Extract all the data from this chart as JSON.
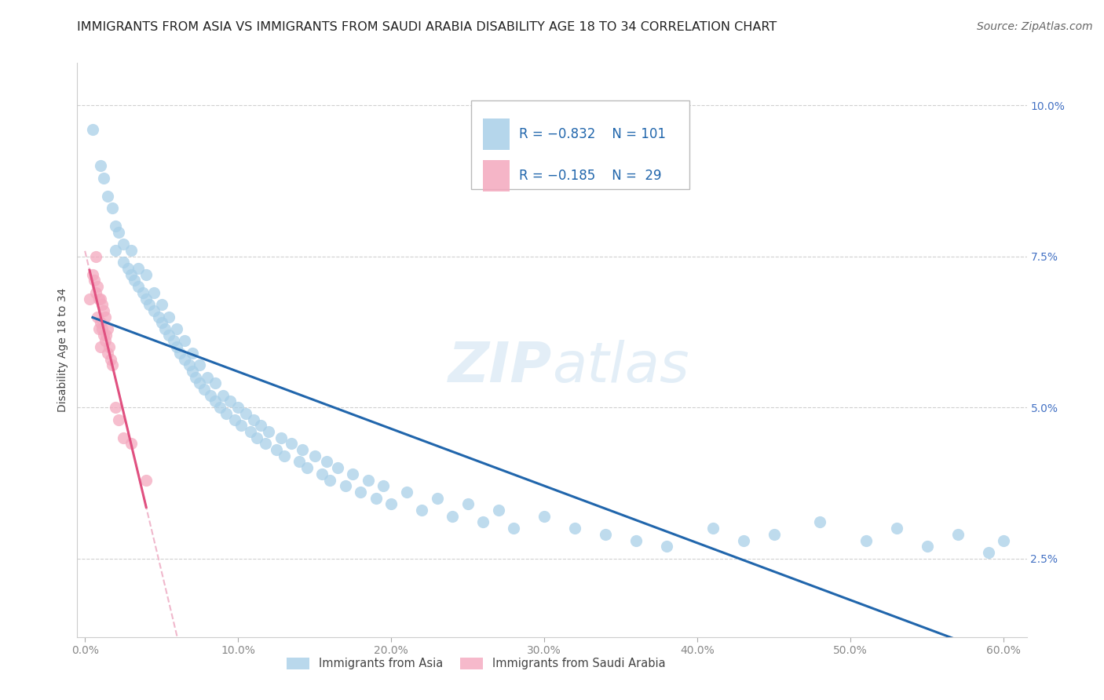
{
  "title": "IMMIGRANTS FROM ASIA VS IMMIGRANTS FROM SAUDI ARABIA DISABILITY AGE 18 TO 34 CORRELATION CHART",
  "source": "Source: ZipAtlas.com",
  "ylabel": "Disability Age 18 to 34",
  "xlabel": "",
  "legend_label_asia": "Immigrants from Asia",
  "legend_label_saudi": "Immigrants from Saudi Arabia",
  "legend_r_asia": "-0.832",
  "legend_n_asia": "101",
  "legend_r_saudi": "-0.185",
  "legend_n_saudi": "29",
  "xlim": [
    -0.005,
    0.615
  ],
  "ylim": [
    0.012,
    0.107
  ],
  "xticks": [
    0.0,
    0.1,
    0.2,
    0.3,
    0.4,
    0.5,
    0.6
  ],
  "xticklabels": [
    "0.0%",
    "10.0%",
    "20.0%",
    "30.0%",
    "40.0%",
    "50.0%",
    "60.0%"
  ],
  "yticks": [
    0.025,
    0.05,
    0.075,
    0.1
  ],
  "yticklabels": [
    "2.5%",
    "5.0%",
    "7.5%",
    "10.0%"
  ],
  "color_asia": "#a8cfe8",
  "color_saudi": "#f4a8be",
  "color_regression_asia": "#2166ac",
  "color_regression_saudi": "#e05080",
  "color_regression_saudi_dashed": "#f0b8cc",
  "background_color": "#ffffff",
  "watermark_color": "#c8dff0",
  "asia_x": [
    0.005,
    0.01,
    0.012,
    0.015,
    0.018,
    0.02,
    0.02,
    0.022,
    0.025,
    0.025,
    0.028,
    0.03,
    0.03,
    0.032,
    0.035,
    0.035,
    0.038,
    0.04,
    0.04,
    0.042,
    0.045,
    0.045,
    0.048,
    0.05,
    0.05,
    0.052,
    0.055,
    0.055,
    0.058,
    0.06,
    0.06,
    0.062,
    0.065,
    0.065,
    0.068,
    0.07,
    0.07,
    0.072,
    0.075,
    0.075,
    0.078,
    0.08,
    0.082,
    0.085,
    0.085,
    0.088,
    0.09,
    0.092,
    0.095,
    0.098,
    0.1,
    0.102,
    0.105,
    0.108,
    0.11,
    0.112,
    0.115,
    0.118,
    0.12,
    0.125,
    0.128,
    0.13,
    0.135,
    0.14,
    0.142,
    0.145,
    0.15,
    0.155,
    0.158,
    0.16,
    0.165,
    0.17,
    0.175,
    0.18,
    0.185,
    0.19,
    0.195,
    0.2,
    0.21,
    0.22,
    0.23,
    0.24,
    0.25,
    0.26,
    0.27,
    0.28,
    0.3,
    0.32,
    0.34,
    0.36,
    0.38,
    0.41,
    0.43,
    0.45,
    0.48,
    0.51,
    0.53,
    0.55,
    0.57,
    0.59,
    0.6
  ],
  "asia_y": [
    0.096,
    0.09,
    0.088,
    0.085,
    0.083,
    0.08,
    0.076,
    0.079,
    0.077,
    0.074,
    0.073,
    0.076,
    0.072,
    0.071,
    0.073,
    0.07,
    0.069,
    0.072,
    0.068,
    0.067,
    0.069,
    0.066,
    0.065,
    0.067,
    0.064,
    0.063,
    0.065,
    0.062,
    0.061,
    0.063,
    0.06,
    0.059,
    0.061,
    0.058,
    0.057,
    0.059,
    0.056,
    0.055,
    0.057,
    0.054,
    0.053,
    0.055,
    0.052,
    0.054,
    0.051,
    0.05,
    0.052,
    0.049,
    0.051,
    0.048,
    0.05,
    0.047,
    0.049,
    0.046,
    0.048,
    0.045,
    0.047,
    0.044,
    0.046,
    0.043,
    0.045,
    0.042,
    0.044,
    0.041,
    0.043,
    0.04,
    0.042,
    0.039,
    0.041,
    0.038,
    0.04,
    0.037,
    0.039,
    0.036,
    0.038,
    0.035,
    0.037,
    0.034,
    0.036,
    0.033,
    0.035,
    0.032,
    0.034,
    0.031,
    0.033,
    0.03,
    0.032,
    0.03,
    0.029,
    0.028,
    0.027,
    0.03,
    0.028,
    0.029,
    0.031,
    0.028,
    0.03,
    0.027,
    0.029,
    0.026,
    0.028
  ],
  "saudi_x": [
    0.003,
    0.005,
    0.006,
    0.007,
    0.007,
    0.008,
    0.008,
    0.009,
    0.009,
    0.01,
    0.01,
    0.01,
    0.011,
    0.011,
    0.012,
    0.012,
    0.013,
    0.013,
    0.014,
    0.015,
    0.015,
    0.016,
    0.017,
    0.018,
    0.02,
    0.022,
    0.025,
    0.03,
    0.04
  ],
  "saudi_y": [
    0.068,
    0.072,
    0.071,
    0.075,
    0.069,
    0.07,
    0.065,
    0.068,
    0.063,
    0.068,
    0.064,
    0.06,
    0.067,
    0.063,
    0.066,
    0.062,
    0.065,
    0.061,
    0.062,
    0.063,
    0.059,
    0.06,
    0.058,
    0.057,
    0.05,
    0.048,
    0.045,
    0.044,
    0.038
  ],
  "title_fontsize": 11.5,
  "axis_label_fontsize": 10,
  "tick_fontsize": 10,
  "legend_fontsize": 12,
  "source_fontsize": 10
}
